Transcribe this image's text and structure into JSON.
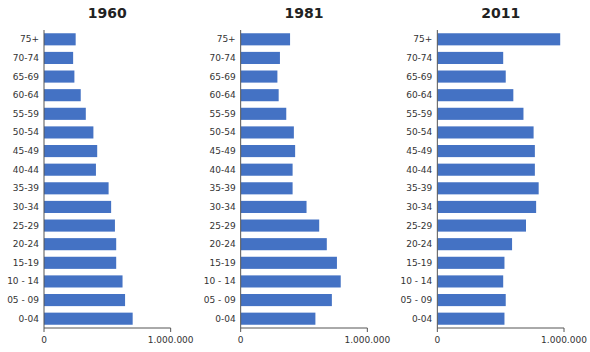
{
  "chart_data": [
    {
      "type": "bar",
      "title": "1960",
      "orientation": "horizontal",
      "color": "#4472C4",
      "grid": false,
      "categories": [
        "0-04",
        "05 - 09",
        "10 - 14",
        "15-19",
        "20-24",
        "25-29",
        "30-34",
        "35-39",
        "40-44",
        "45-49",
        "50-54",
        "55-59",
        "60-64",
        "65-69",
        "70-74",
        "75+"
      ],
      "values": [
        700000,
        640000,
        620000,
        570000,
        570000,
        560000,
        530000,
        510000,
        410000,
        420000,
        390000,
        330000,
        290000,
        240000,
        230000,
        250000
      ],
      "xlim": [
        0,
        1000000
      ],
      "xticks": [
        0,
        {
          "value": 1000000,
          "label": "1.000.000"
        }
      ]
    },
    {
      "type": "bar",
      "title": "1981",
      "orientation": "horizontal",
      "color": "#4472C4",
      "grid": false,
      "categories": [
        "0-04",
        "05 - 09",
        "10 - 14",
        "15-19",
        "20-24",
        "25-29",
        "30-34",
        "35-39",
        "40-44",
        "45-49",
        "50-54",
        "55-59",
        "60-64",
        "65-69",
        "70-74",
        "75+"
      ],
      "values": [
        590000,
        720000,
        790000,
        760000,
        680000,
        620000,
        520000,
        410000,
        410000,
        430000,
        420000,
        360000,
        300000,
        290000,
        310000,
        390000
      ],
      "xlim": [
        0,
        1000000
      ],
      "xticks": [
        0,
        {
          "value": 1000000,
          "label": "1.000.000"
        }
      ]
    },
    {
      "type": "bar",
      "title": "2011",
      "orientation": "horizontal",
      "color": "#4472C4",
      "grid": false,
      "categories": [
        "0-04",
        "05 - 09",
        "10 - 14",
        "15-19",
        "20-24",
        "25-29",
        "30-34",
        "35-39",
        "40-44",
        "45-49",
        "50-54",
        "55-59",
        "60-64",
        "65-69",
        "70-74",
        "75+"
      ],
      "values": [
        530000,
        540000,
        520000,
        530000,
        590000,
        700000,
        780000,
        800000,
        770000,
        770000,
        760000,
        680000,
        600000,
        540000,
        520000,
        970000
      ],
      "xlim": [
        0,
        1000000
      ],
      "xticks": [
        0,
        {
          "value": 1000000,
          "label": "1.000.000"
        }
      ]
    }
  ]
}
